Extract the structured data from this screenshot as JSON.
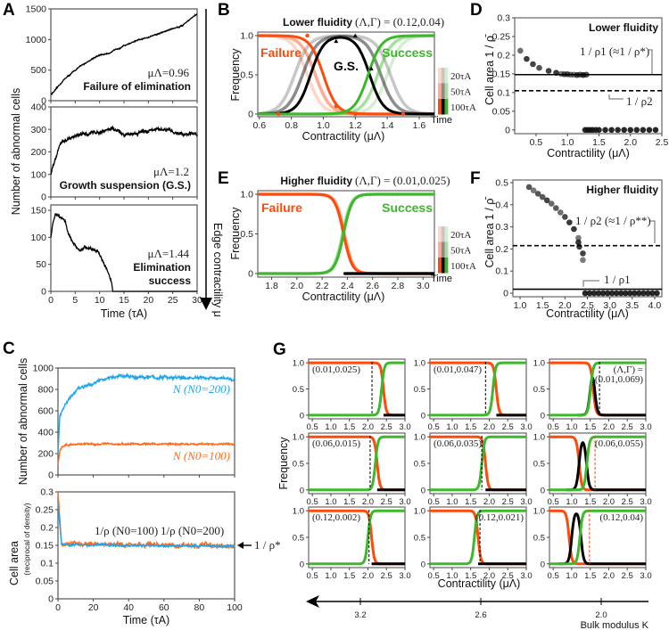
{
  "panel_labels": [
    "A",
    "B",
    "C",
    "D",
    "E",
    "F",
    "G"
  ],
  "colors": {
    "failure": "#ff4a0a",
    "success": "#3cb82a",
    "gs": "#000000",
    "blue": "#1ea5ee",
    "orange": "#ff6a1a"
  },
  "panel_A": {
    "ylabel": "Number of abnormal cells",
    "xlabel": "Time (τA)",
    "arrow_label": "Edge contractility μ"
  },
  "panel_C": {
    "ylabel_top": "Number of abnormal cells",
    "ylabel_bottom_main": "Cell area",
    "ylabel_bottom_sub": "(reciprocal of density)",
    "xlabel": "Time (τA)",
    "rho_star_label": "1 / ρ*"
  },
  "panel_G": {
    "xlabel": "Contractility (μΛ)",
    "ylabel": "Frequency",
    "bulk_modulus": {
      "label": "Bulk modulus K",
      "ticks": [
        "3.2",
        "2.6",
        "2.0"
      ]
    }
  },
  "chart_data": [
    {
      "id": "A1",
      "type": "line",
      "xlim": [
        0,
        30
      ],
      "ylim": [
        0,
        1500
      ],
      "yticks": [
        "0",
        "500",
        "1000",
        "1500"
      ],
      "series": [
        {
          "name": "abnormal cells",
          "color": "#000000",
          "noise": 14,
          "points": [
            [
              0,
              100
            ],
            [
              1,
              180
            ],
            [
              2,
              280
            ],
            [
              3,
              370
            ],
            [
              4,
              430
            ],
            [
              5,
              500
            ],
            [
              6,
              560
            ],
            [
              7,
              610
            ],
            [
              8,
              660
            ],
            [
              9,
              710
            ],
            [
              10,
              740
            ],
            [
              11,
              760
            ],
            [
              12,
              780
            ],
            [
              13,
              820
            ],
            [
              14,
              860
            ],
            [
              15,
              900
            ],
            [
              16,
              930
            ],
            [
              17,
              960
            ],
            [
              18,
              990
            ],
            [
              19,
              1010
            ],
            [
              20,
              1040
            ],
            [
              21,
              1070
            ],
            [
              22,
              1090
            ],
            [
              23,
              1120
            ],
            [
              24,
              1150
            ],
            [
              25,
              1180
            ],
            [
              26,
              1200
            ],
            [
              27,
              1230
            ],
            [
              28,
              1300
            ],
            [
              29,
              1360
            ],
            [
              30,
              1420
            ]
          ]
        }
      ],
      "annotations": {
        "mu": "μΛ=0.96",
        "outcome": [
          "Failure of elimination"
        ]
      }
    },
    {
      "id": "A2",
      "type": "line",
      "xlim": [
        0,
        30
      ],
      "ylim": [
        0,
        400
      ],
      "yticks": [
        "0",
        "100",
        "200",
        "300",
        "400"
      ],
      "series": [
        {
          "name": "abnormal cells",
          "color": "#000000",
          "noise": 12,
          "points": [
            [
              0,
              100
            ],
            [
              1,
              170
            ],
            [
              2,
              240
            ],
            [
              3,
              250
            ],
            [
              4,
              262
            ],
            [
              5,
              268
            ],
            [
              7,
              280
            ],
            [
              10,
              290
            ],
            [
              12.5,
              305
            ],
            [
              15,
              275
            ],
            [
              18,
              285
            ],
            [
              21,
              300
            ],
            [
              24,
              295
            ],
            [
              27,
              280
            ],
            [
              30,
              282
            ]
          ]
        }
      ],
      "annotations": {
        "mu": "μΛ=1.2",
        "outcome": [
          "Growth suspension (G.S.)"
        ]
      }
    },
    {
      "id": "A3",
      "type": "line",
      "xlim": [
        0,
        30
      ],
      "ylim": [
        0,
        160
      ],
      "yticks": [
        "0",
        "50",
        "100",
        "150"
      ],
      "xticks": [
        "0",
        "5",
        "10",
        "15",
        "20",
        "25",
        "30"
      ],
      "series": [
        {
          "name": "abnormal cells",
          "color": "#000000",
          "noise": 4,
          "points": [
            [
              0,
              100
            ],
            [
              0.5,
              130
            ],
            [
              1,
              145
            ],
            [
              2,
              138
            ],
            [
              3,
              130
            ],
            [
              3.5,
              110
            ],
            [
              4.5,
              90
            ],
            [
              5.5,
              78
            ],
            [
              6,
              75
            ],
            [
              7,
              82
            ],
            [
              8,
              80
            ],
            [
              9,
              75
            ],
            [
              10,
              70
            ],
            [
              10.5,
              60
            ],
            [
              11,
              50
            ],
            [
              12,
              30
            ],
            [
              12.5,
              15
            ],
            [
              12.7,
              0
            ],
            [
              30,
              0
            ]
          ]
        }
      ],
      "annotations": {
        "mu": "μΛ=1.44",
        "outcome": [
          "Elimination",
          "success"
        ]
      }
    },
    {
      "id": "B",
      "type": "line",
      "title": "Lower fluidity",
      "title_params": "(Λ,Γ) = (0.12,0.04)",
      "xlim": [
        0.59,
        1.695
      ],
      "ylim": [
        -0.034,
        1.045
      ],
      "xticks": [
        "0.6",
        "0.8",
        "1.0",
        "1.2",
        "1.4",
        "1.6"
      ],
      "yticks": [
        "0",
        "0.5",
        "1.0"
      ],
      "xlabel": "Contractility (μΛ)",
      "ylabel": "Frequency",
      "labels": {
        "failure": "Failure",
        "gs": "G.S.",
        "success": "Success"
      },
      "legend": {
        "title": "Time",
        "entries": [
          "20τA",
          "50τA",
          "100τA"
        ],
        "placement": "right"
      },
      "curves": [
        {
          "time": "20τA",
          "opacity": 0.22,
          "failure_center": 0.9,
          "gs_rise": 0.82,
          "gs_fall": 1.42,
          "success_center": 1.4,
          "steepness": 22
        },
        {
          "time": "50τA",
          "opacity": 0.45,
          "failure_center": 0.95,
          "gs_rise": 0.87,
          "gs_fall": 1.36,
          "success_center": 1.34,
          "steepness": 22
        },
        {
          "time": "100τA",
          "opacity": 1,
          "failure_center": 1.0,
          "gs_rise": 0.92,
          "gs_fall": 1.29,
          "success_center": 1.28,
          "steepness": 24
        }
      ]
    },
    {
      "id": "D",
      "type": "scatter",
      "title": "Lower fluidity",
      "xlim": [
        0.16,
        2.5
      ],
      "ylim": [
        -0.01,
        0.3
      ],
      "xticks": [
        "0.5",
        "1.0",
        "1.5",
        "2.0",
        "2.5"
      ],
      "yticks": [
        "0",
        "0.05",
        "0.1",
        "0.15",
        "0.2",
        "0.25",
        "0.3"
      ],
      "xlabel": "Contractility (μΛ)",
      "ylabel": "Cell area  1 / ρ̄",
      "points": [
        [
          0.25,
          0.212
        ],
        [
          0.35,
          0.19
        ],
        [
          0.45,
          0.176
        ],
        [
          0.55,
          0.166
        ],
        [
          0.7,
          0.158
        ],
        [
          0.82,
          0.153
        ],
        [
          0.9,
          0.15
        ],
        [
          0.95,
          0.149
        ],
        [
          1.0,
          0.149
        ],
        [
          1.05,
          0.148
        ],
        [
          1.1,
          0.148
        ],
        [
          1.15,
          0.147
        ],
        [
          1.2,
          0.148
        ],
        [
          1.25,
          0.147
        ],
        [
          1.3,
          0.148
        ],
        [
          1.28,
          0
        ],
        [
          1.32,
          0
        ],
        [
          1.36,
          0
        ],
        [
          1.4,
          0
        ],
        [
          1.45,
          0
        ],
        [
          1.5,
          0
        ],
        [
          1.6,
          0
        ],
        [
          1.7,
          0
        ],
        [
          1.8,
          0
        ],
        [
          1.9,
          0
        ],
        [
          2.0,
          0
        ],
        [
          2.1,
          0
        ],
        [
          2.2,
          0
        ],
        [
          2.3,
          0
        ],
        [
          2.4,
          0
        ]
      ],
      "reference_lines": [
        {
          "value": 0.148,
          "style": "solid",
          "label": "1 / ρ1 (≈1 / ρ*)"
        },
        {
          "value": 0.105,
          "style": "dashed",
          "label": "1 / ρ2"
        }
      ]
    },
    {
      "id": "E",
      "type": "line",
      "title": "Higher fluidity",
      "title_params": "(Λ,Γ) = (0.01,0.025)",
      "xlim": [
        1.69,
        3.09
      ],
      "ylim": [
        -0.045,
        1.045
      ],
      "xticks": [
        "1.8",
        "2.0",
        "2.2",
        "2.4",
        "2.6",
        "2.8",
        "3.0"
      ],
      "yticks": [
        "0",
        "0.5",
        "1.0"
      ],
      "xlabel": "Contractility (μΛ)",
      "ylabel": "Frequency",
      "labels": {
        "failure": "Failure",
        "success": "Success"
      },
      "legend": {
        "title": "Time",
        "entries": [
          "20τA",
          "50τA",
          "100τA"
        ],
        "placement": "right"
      },
      "curves": [
        {
          "time": "20τA",
          "opacity": 0.22,
          "failure_center": 2.38,
          "success_center": 2.36,
          "steepness": 30
        },
        {
          "time": "50τA",
          "opacity": 0.45,
          "failure_center": 2.375,
          "success_center": 2.365,
          "steepness": 30
        },
        {
          "time": "100τA",
          "opacity": 1,
          "failure_center": 2.37,
          "success_center": 2.37,
          "steepness": 30
        }
      ]
    },
    {
      "id": "F",
      "type": "scatter",
      "title": "Higher fluidity",
      "xlim": [
        0.84,
        4.16
      ],
      "ylim": [
        -0.016,
        0.512
      ],
      "xticks": [
        "1.0",
        "1.5",
        "2.0",
        "2.5",
        "3.0",
        "3.5",
        "4.0"
      ],
      "yticks": [
        "0",
        "0.1",
        "0.2",
        "0.3",
        "0.4",
        "0.5"
      ],
      "xlabel": "Contractility (μΛ)",
      "ylabel": "Cell area  1 / ρ̄",
      "points": [
        [
          1.2,
          0.48
        ],
        [
          1.3,
          0.465
        ],
        [
          1.4,
          0.45
        ],
        [
          1.5,
          0.435
        ],
        [
          1.6,
          0.42
        ],
        [
          1.7,
          0.405
        ],
        [
          1.8,
          0.385
        ],
        [
          1.9,
          0.365
        ],
        [
          2.0,
          0.345
        ],
        [
          2.1,
          0.32
        ],
        [
          2.2,
          0.29
        ],
        [
          2.3,
          0.25
        ],
        [
          2.3,
          0.23
        ],
        [
          2.32,
          0.21
        ],
        [
          2.4,
          0.18
        ],
        [
          2.4,
          0.15
        ],
        [
          2.45,
          0
        ],
        [
          2.55,
          0
        ],
        [
          2.65,
          0
        ],
        [
          2.75,
          0
        ],
        [
          2.85,
          0
        ],
        [
          2.95,
          0
        ],
        [
          3.05,
          0
        ],
        [
          3.15,
          0
        ],
        [
          3.25,
          0
        ],
        [
          3.35,
          0
        ],
        [
          3.45,
          0
        ],
        [
          3.55,
          0
        ],
        [
          3.65,
          0
        ],
        [
          3.75,
          0
        ],
        [
          3.85,
          0
        ],
        [
          3.95,
          0
        ],
        [
          4.05,
          0
        ]
      ],
      "reference_lines": [
        {
          "value": 0.215,
          "style": "dashed",
          "label": "1 / ρ2 (≈1 / ρ**)"
        },
        {
          "value": 0.018,
          "style": "solid",
          "label": "1 / ρ1"
        }
      ]
    },
    {
      "id": "C1",
      "type": "line",
      "xlim": [
        0,
        100
      ],
      "ylim": [
        0,
        1000
      ],
      "yticks": [
        "0",
        "200",
        "400",
        "600",
        "800",
        "1000"
      ],
      "series": [
        {
          "name": "N (N0=200)",
          "color": "#1ea5ee",
          "noise": 22,
          "points": [
            [
              0,
              200
            ],
            [
              1,
              550
            ],
            [
              3,
              620
            ],
            [
              5,
              680
            ],
            [
              10,
              780
            ],
            [
              15,
              840
            ],
            [
              20,
              860
            ],
            [
              25,
              890
            ],
            [
              30,
              915
            ],
            [
              40,
              920
            ],
            [
              60,
              910
            ],
            [
              80,
              905
            ],
            [
              100,
              895
            ]
          ]
        },
        {
          "name": "N (N0=100)",
          "color": "#ff6a1a",
          "noise": 13,
          "points": [
            [
              0,
              100
            ],
            [
              1,
              220
            ],
            [
              2,
              255
            ],
            [
              5,
              280
            ],
            [
              10,
              290
            ],
            [
              100,
              288
            ]
          ]
        }
      ]
    },
    {
      "id": "C2",
      "type": "line",
      "xlim": [
        0,
        100
      ],
      "ylim": [
        0,
        0.3
      ],
      "yticks": [
        "0",
        "0.05",
        "0.1",
        "0.15",
        "0.2",
        "0.25",
        "0.3"
      ],
      "xticks": [
        "0",
        "20",
        "40",
        "60",
        "80",
        "100"
      ],
      "series": [
        {
          "name": "1/ρ (N0=100)",
          "color": "#ff6a1a",
          "noise": 0.009,
          "points": [
            [
              0,
              0.3
            ],
            [
              2,
              0.155
            ],
            [
              100,
              0.148
            ]
          ]
        },
        {
          "name": "1/ρ (N0=200)",
          "color": "#1ea5ee",
          "noise": 0.004,
          "points": [
            [
              0,
              0.27
            ],
            [
              2,
              0.152
            ],
            [
              100,
              0.147
            ]
          ]
        }
      ],
      "reference": {
        "value": 0.15
      }
    },
    {
      "id": "G1",
      "type": "line",
      "label": [
        "(0.01,0.025)"
      ],
      "label_side": "left",
      "failure_center": 2.42,
      "success_center": 2.37,
      "threshold": 2.11,
      "threshold_color": "black"
    },
    {
      "id": "G2",
      "type": "line",
      "label": [
        "(0.01,0.047)"
      ],
      "label_side": "left",
      "failure_center": 2.19,
      "success_center": 2.1,
      "threshold": 1.9,
      "threshold_color": "black"
    },
    {
      "id": "G3",
      "type": "line",
      "label": [
        "(Λ,Γ) =",
        "(0.01,0.069)"
      ],
      "label_side": "right",
      "failure_center": 1.58,
      "success_center": 1.51,
      "gs_rise": 1.5,
      "gs_fall": 1.62,
      "threshold": 1.75,
      "threshold_color": "black"
    },
    {
      "id": "G4",
      "type": "line",
      "label": [
        "(0.06,0.015)"
      ],
      "label_side": "left",
      "failure_center": 2.25,
      "success_center": 2.2,
      "threshold": 2.06,
      "threshold_color": "black"
    },
    {
      "id": "G5",
      "type": "line",
      "label": [
        "(0.06,0.035)"
      ],
      "label_side": "left",
      "failure_center": 1.9,
      "success_center": 1.8,
      "threshold": 1.8,
      "threshold_color": "black"
    },
    {
      "id": "G6",
      "type": "line",
      "label": [
        "(0.06,0.055)"
      ],
      "label_side": "right",
      "failure_center": 1.2,
      "success_center": 1.41,
      "gs_rise": 1.2,
      "gs_fall": 1.4,
      "threshold": 1.63,
      "threshold_color": "orange"
    },
    {
      "id": "G7",
      "type": "line",
      "label": [
        "(0.12,0.002)"
      ],
      "label_side": "left",
      "failure_center": 2.1,
      "success_center": 2.0,
      "threshold": 2.03,
      "threshold_color": "black"
    },
    {
      "id": "G8",
      "type": "line",
      "label": [
        "(0.12,0.021)"
      ],
      "label_side": "right",
      "failure_center": 1.7,
      "success_center": 1.6,
      "threshold": 1.75,
      "threshold_color": "black"
    },
    {
      "id": "G9",
      "type": "line",
      "label": [
        "(0.12,0.04)"
      ],
      "label_side": "right",
      "failure_center": 0.93,
      "success_center": 1.22,
      "gs_rise": 1.0,
      "gs_fall": 1.25,
      "threshold": 1.48,
      "threshold_color": "orange"
    }
  ],
  "g_axes": {
    "xlim": [
      0.4,
      3.0
    ],
    "ylim": [
      -0.07,
      1.07
    ],
    "xticks": [
      "0.5",
      "1.0",
      "1.5",
      "2.0",
      "2.5",
      "3.0"
    ],
    "yticks": [
      "0",
      "0.5",
      "1.0"
    ]
  }
}
